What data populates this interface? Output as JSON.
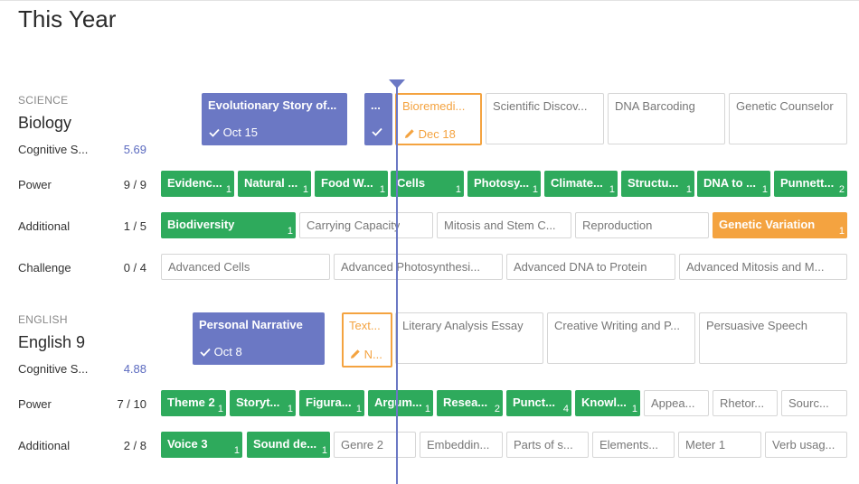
{
  "page": {
    "title": "This Year"
  },
  "subjects": {
    "science": {
      "category": "SCIENCE",
      "name": "Biology",
      "cognitive": {
        "label": "Cognitive S...",
        "value": "5.69"
      },
      "units": [
        {
          "title": "Evolutionary Story of...",
          "status": "done",
          "date": "Oct 15"
        },
        {
          "title": "...",
          "status": "done",
          "date": ""
        },
        {
          "title": "Bioremedi...",
          "status": "in-progress",
          "date": "Dec 18"
        },
        {
          "title": "Scientific Discov...",
          "status": "upcoming"
        },
        {
          "title": "DNA Barcoding",
          "status": "upcoming"
        },
        {
          "title": "Genetic Counselor",
          "status": "upcoming"
        }
      ],
      "power": {
        "label": "Power",
        "value": "9 / 9",
        "items": [
          {
            "title": "Evidenc...",
            "count": "1"
          },
          {
            "title": "Natural ...",
            "count": "1"
          },
          {
            "title": "Food W...",
            "count": "1"
          },
          {
            "title": "Cells",
            "count": "1"
          },
          {
            "title": "Photosy...",
            "count": "1"
          },
          {
            "title": "Climate...",
            "count": "1"
          },
          {
            "title": "Structu...",
            "count": "1"
          },
          {
            "title": "DNA to ...",
            "count": "1"
          },
          {
            "title": "Punnett...",
            "count": "2"
          }
        ]
      },
      "additional": {
        "label": "Additional",
        "value": "1 / 5",
        "items": [
          {
            "title": "Biodiversity",
            "count": "1",
            "state": "mastered"
          },
          {
            "title": "Carrying Capacity",
            "state": "none"
          },
          {
            "title": "Mitosis and Stem C...",
            "state": "none"
          },
          {
            "title": "Reproduction",
            "state": "none"
          },
          {
            "title": "Genetic Variation",
            "count": "1",
            "state": "progress"
          }
        ]
      },
      "challenge": {
        "label": "Challenge",
        "value": "0 / 4",
        "items": [
          {
            "title": "Advanced Cells"
          },
          {
            "title": "Advanced Photosynthesi..."
          },
          {
            "title": "Advanced DNA to Protein"
          },
          {
            "title": "Advanced Mitosis and M..."
          }
        ]
      }
    },
    "english": {
      "category": "ENGLISH",
      "name": "English 9",
      "cognitive": {
        "label": "Cognitive S...",
        "value": "4.88"
      },
      "units": [
        {
          "title": "Personal Narrative",
          "status": "done",
          "date": "Oct 8"
        },
        {
          "title": "Text...",
          "status": "in-progress",
          "date": "N..."
        },
        {
          "title": "Literary Analysis Essay",
          "status": "upcoming"
        },
        {
          "title": "Creative Writing and P...",
          "status": "upcoming"
        },
        {
          "title": "Persuasive Speech",
          "status": "upcoming"
        }
      ],
      "power": {
        "label": "Power",
        "value": "7 / 10",
        "items": [
          {
            "title": "Theme 2",
            "count": "1",
            "state": "mastered"
          },
          {
            "title": "Storyt...",
            "count": "1",
            "state": "mastered"
          },
          {
            "title": "Figura...",
            "count": "1",
            "state": "mastered"
          },
          {
            "title": "Argum...",
            "count": "1",
            "state": "mastered"
          },
          {
            "title": "Resea...",
            "count": "2",
            "state": "mastered"
          },
          {
            "title": "Punct...",
            "count": "4",
            "state": "mastered"
          },
          {
            "title": "Knowl...",
            "count": "1",
            "state": "mastered"
          },
          {
            "title": "Appea...",
            "state": "none"
          },
          {
            "title": "Rhetor...",
            "state": "none"
          },
          {
            "title": "Sourc...",
            "state": "none"
          }
        ]
      },
      "additional": {
        "label": "Additional",
        "value": "2 / 8",
        "items": [
          {
            "title": "Voice 3",
            "count": "1",
            "state": "mastered"
          },
          {
            "title": "Sound de...",
            "count": "1",
            "state": "mastered"
          },
          {
            "title": "Genre 2",
            "state": "none"
          },
          {
            "title": "Embeddin...",
            "state": "none"
          },
          {
            "title": "Parts of s...",
            "state": "none"
          },
          {
            "title": "Elements...",
            "state": "none"
          },
          {
            "title": "Meter 1",
            "state": "none"
          },
          {
            "title": "Verb usag...",
            "state": "none"
          }
        ]
      }
    }
  },
  "colors": {
    "accent": "#6b78c4",
    "mastered": "#2eaa5c",
    "in_progress": "#f4a340",
    "outline": "#d6d6d6"
  },
  "icons": {
    "done": "check-icon",
    "in_progress": "pencil-icon",
    "today": "today-marker"
  }
}
